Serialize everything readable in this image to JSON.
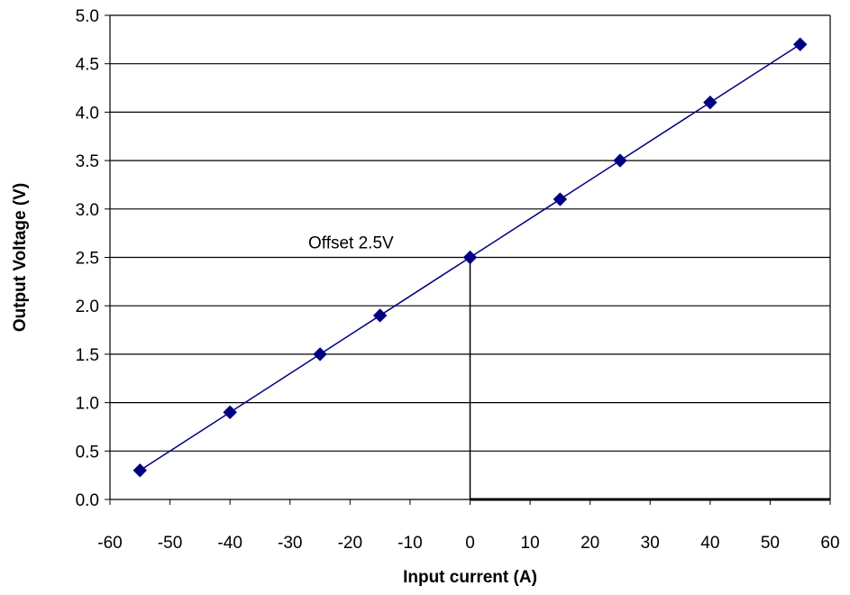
{
  "chart_data": {
    "type": "scatter",
    "xlabel": "Input current  (A)",
    "ylabel": "Output Voltage (V)",
    "xlim": [
      -60,
      60
    ],
    "ylim": [
      0.0,
      5.0
    ],
    "xticks": [
      "-60",
      "-50",
      "-40",
      "-30",
      "-20",
      "-10",
      "0",
      "10",
      "20",
      "30",
      "40",
      "50",
      "60"
    ],
    "yticks": [
      "0.0",
      "0.5",
      "1.0",
      "1.5",
      "2.0",
      "2.5",
      "3.0",
      "3.5",
      "4.0",
      "4.5",
      "5.0"
    ],
    "grid": "horizontal",
    "series": [
      {
        "x": [
          -55,
          -40,
          -25,
          -15,
          0,
          15,
          25,
          40,
          55
        ],
        "y": [
          0.3,
          0.9,
          1.5,
          1.9,
          2.5,
          3.1,
          3.5,
          4.1,
          4.7
        ],
        "marker": "diamond",
        "color": "#000080",
        "line": "linear-fit"
      }
    ],
    "annotations": [
      {
        "text": "Offset 2.5V",
        "x": 0,
        "y": 2.5
      }
    ]
  }
}
